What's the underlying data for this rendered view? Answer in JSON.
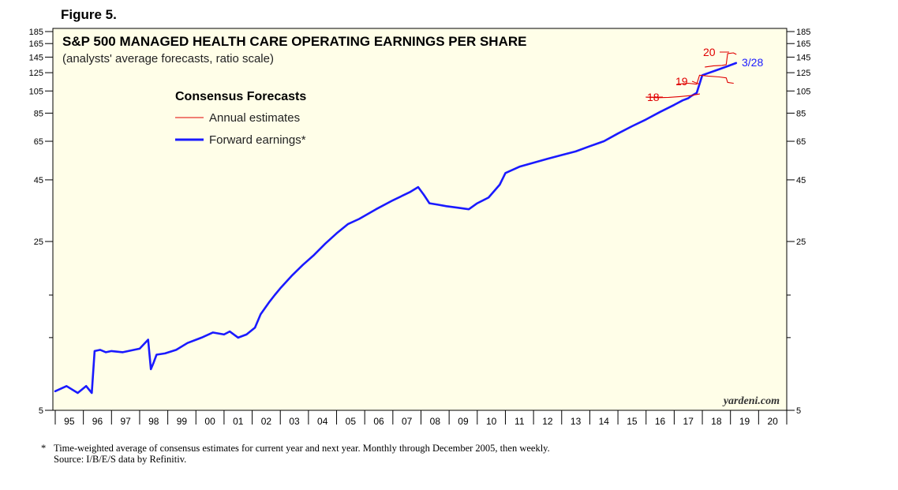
{
  "figure_label": "Figure 5.",
  "colors": {
    "background": "#fffee8",
    "forward": "#1a1aff",
    "annual": "#e00000"
  },
  "chart_data": {
    "type": "line",
    "scale": "log",
    "title": "S&P 500 MANAGED HEALTH CARE OPERATING EARNINGS PER SHARE",
    "subtitle": "(analysts' average forecasts, ratio scale)",
    "legend_title": "Consensus Forecasts",
    "legend": [
      "Annual estimates",
      "Forward earnings*"
    ],
    "y_ticks": [
      5,
      25,
      45,
      65,
      85,
      105,
      125,
      145,
      165,
      185
    ],
    "y_tick_labels": [
      "5",
      "25",
      "45",
      "65",
      "85",
      "105",
      "125",
      "145",
      "165",
      "185"
    ],
    "ylim": [
      5,
      185
    ],
    "x_tick_labels": [
      "95",
      "96",
      "97",
      "98",
      "99",
      "00",
      "01",
      "02",
      "03",
      "04",
      "05",
      "06",
      "07",
      "08",
      "09",
      "10",
      "11",
      "12",
      "13",
      "14",
      "15",
      "16",
      "17",
      "18",
      "19",
      "20"
    ],
    "xlim": [
      1995,
      2021
    ],
    "series": [
      {
        "name": "Forward earnings*",
        "style": "thick-blue",
        "x": [
          1995.0,
          1995.4,
          1995.8,
          1996.1,
          1996.3,
          1996.4,
          1996.6,
          1996.8,
          1997.0,
          1997.4,
          1997.8,
          1998.0,
          1998.3,
          1998.4,
          1998.5,
          1998.6,
          1998.9,
          1999.3,
          1999.7,
          2000.2,
          2000.6,
          2001.0,
          2001.2,
          2001.5,
          2001.8,
          2002.1,
          2002.3,
          2002.6,
          2002.8,
          2003.0,
          2003.4,
          2003.8,
          2004.2,
          2004.6,
          2005.0,
          2005.4,
          2005.8,
          2006.4,
          2007.0,
          2007.6,
          2007.9,
          2008.1,
          2008.3,
          2008.6,
          2008.9,
          2009.3,
          2009.7,
          2010.0,
          2010.4,
          2010.8,
          2011.0,
          2011.5,
          2012.0,
          2012.5,
          2013.0,
          2013.5,
          2014.0,
          2014.5,
          2015.0,
          2015.5,
          2016.0,
          2016.5,
          2017.0,
          2017.3,
          2017.5,
          2017.6,
          2017.8,
          2018.0,
          2018.5,
          2018.9,
          2019.2
        ],
        "y": [
          6.0,
          6.3,
          5.9,
          6.3,
          5.9,
          8.8,
          8.9,
          8.7,
          8.8,
          8.7,
          8.9,
          9.0,
          9.8,
          7.4,
          7.9,
          8.5,
          8.6,
          8.9,
          9.5,
          10.0,
          10.5,
          10.3,
          10.6,
          10.0,
          10.3,
          11.0,
          12.5,
          14.0,
          15.0,
          16.0,
          18.0,
          20.0,
          22.0,
          24.5,
          27.0,
          29.5,
          31.0,
          34.0,
          37.0,
          40.0,
          42.0,
          39.0,
          36.0,
          35.5,
          35.0,
          34.5,
          34.0,
          36.0,
          38.0,
          43.0,
          48.0,
          51.0,
          53.0,
          55.0,
          57.0,
          59.0,
          62.0,
          65.0,
          70.0,
          75.0,
          80.0,
          86.0,
          92.0,
          96.0,
          98.0,
          100.0,
          103.0,
          122.0,
          128.0,
          133.0,
          137.0
        ]
      },
      {
        "name": "18",
        "style": "thin-red",
        "x": [
          2016.0,
          2016.4,
          2016.8,
          2017.2,
          2017.6,
          2017.9
        ],
        "y": [
          99.0,
          98.5,
          98.8,
          99.5,
          100.5,
          102.0
        ]
      },
      {
        "name": "19",
        "style": "thin-red",
        "x": [
          2017.1,
          2017.5,
          2017.8,
          2017.9,
          2018.2,
          2018.6,
          2018.85,
          2018.9,
          2019.1
        ],
        "y": [
          112.0,
          113.0,
          112.0,
          122.0,
          121.0,
          120.0,
          119.0,
          114.0,
          113.0
        ]
      },
      {
        "name": "20",
        "style": "thin-red",
        "x": [
          2018.1,
          2018.4,
          2018.7,
          2018.85,
          2018.9,
          2019.1,
          2019.2
        ],
        "y": [
          132.0,
          133.5,
          134.0,
          135.0,
          150.0,
          151.0,
          149.0
        ]
      }
    ],
    "annotations": [
      {
        "text": "20",
        "color": "red"
      },
      {
        "text": "19",
        "color": "red"
      },
      {
        "text": "18",
        "color": "red"
      },
      {
        "text": "3/28",
        "color": "blue"
      }
    ],
    "watermark": "yardeni.com"
  },
  "footnote": {
    "line1": "Time-weighted average of consensus estimates for current year and next year. Monthly through December 2005, then weekly.",
    "line2": "Source: I/B/E/S data by Refinitiv."
  }
}
